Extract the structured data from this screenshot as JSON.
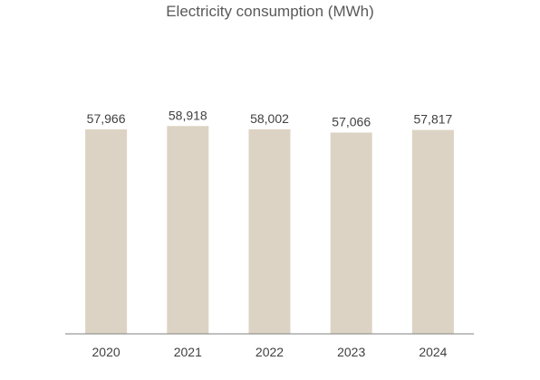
{
  "chart_data": {
    "type": "bar",
    "title": "Electricity consumption (MWh)",
    "categories": [
      "2020",
      "2021",
      "2022",
      "2023",
      "2024"
    ],
    "values": [
      57966,
      58918,
      58002,
      57066,
      57817
    ],
    "value_labels": [
      "57,966",
      "58,918",
      "58,002",
      "57,066",
      "57,817"
    ],
    "xlabel": "",
    "ylabel": "",
    "ylim": [
      0,
      59000
    ],
    "grid": false,
    "legend": "none",
    "colors": {
      "bar": "#ddd3c4",
      "axis": "#808080",
      "text": "#404040",
      "title": "#595959"
    }
  }
}
